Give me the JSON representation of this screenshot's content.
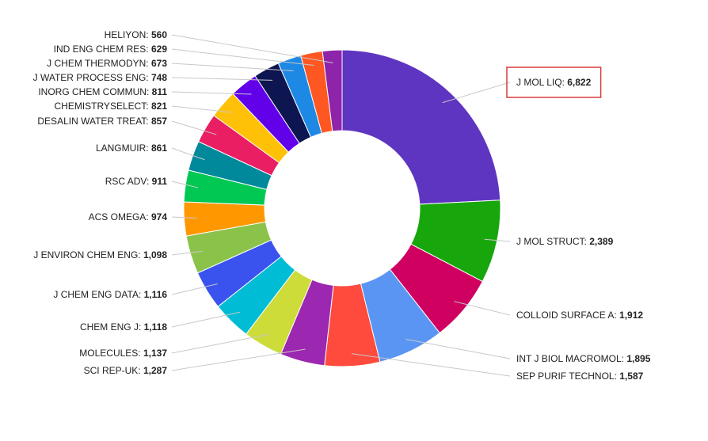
{
  "chart_data": {
    "type": "pie",
    "donut": true,
    "title": "",
    "legend": "none",
    "highlighted": "J MOL LIQ",
    "slices": [
      {
        "label": "J MOL LIQ",
        "value": 6822,
        "display": "6,822",
        "color": "#5e35c1"
      },
      {
        "label": "J MOL STRUCT",
        "value": 2389,
        "display": "2,389",
        "color": "#17a70c"
      },
      {
        "label": "COLLOID SURFACE A",
        "value": 1912,
        "display": "1,912",
        "color": "#cf0060"
      },
      {
        "label": "INT J BIOL MACROMOL",
        "value": 1895,
        "display": "1,895",
        "color": "#5b95f3"
      },
      {
        "label": "SEP PURIF TECHNOL",
        "value": 1587,
        "display": "1,587",
        "color": "#fe4b3e"
      },
      {
        "label": "SCI REP-UK",
        "value": 1287,
        "display": "1,287",
        "color": "#9c27b0"
      },
      {
        "label": "MOLECULES",
        "value": 1137,
        "display": "1,137",
        "color": "#cddc39"
      },
      {
        "label": "CHEM ENG J",
        "value": 1118,
        "display": "1,118",
        "color": "#00bcd4"
      },
      {
        "label": "J CHEM ENG DATA",
        "value": 1116,
        "display": "1,116",
        "color": "#3b53ee"
      },
      {
        "label": "J ENVIRON CHEM ENG",
        "value": 1098,
        "display": "1,098",
        "color": "#8bc34a"
      },
      {
        "label": "ACS OMEGA",
        "value": 974,
        "display": "974",
        "color": "#ff9800"
      },
      {
        "label": "RSC ADV",
        "value": 911,
        "display": "911",
        "color": "#00c853"
      },
      {
        "label": "LANGMUIR",
        "value": 861,
        "display": "861",
        "color": "#00899b"
      },
      {
        "label": "DESALIN WATER TREAT",
        "value": 857,
        "display": "857",
        "color": "#e91e63"
      },
      {
        "label": "CHEMISTRYSELECT",
        "value": 821,
        "display": "821",
        "color": "#ffc107"
      },
      {
        "label": "INORG CHEM COMMUN",
        "value": 811,
        "display": "811",
        "color": "#6200ea"
      },
      {
        "label": "J WATER PROCESS ENG",
        "value": 748,
        "display": "748",
        "color": "#0d1650"
      },
      {
        "label": "J CHEM THERMODYN",
        "value": 673,
        "display": "673",
        "color": "#1e88e5"
      },
      {
        "label": "IND ENG CHEM RES",
        "value": 629,
        "display": "629",
        "color": "#ff5722"
      },
      {
        "label": "HELIYON",
        "value": 560,
        "display": "560",
        "color": "#8e24aa"
      }
    ]
  }
}
